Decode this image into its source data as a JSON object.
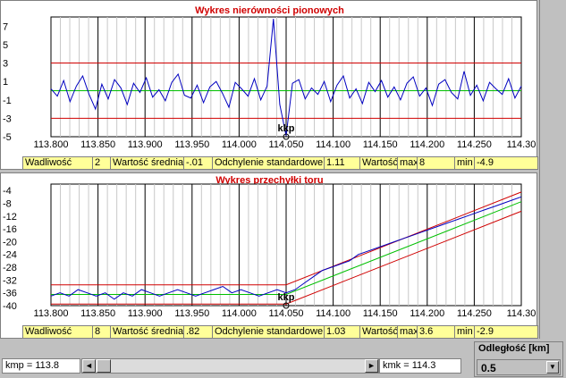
{
  "top_chart": {
    "title": "Wykres nierówności pionowych",
    "y_ticks": [
      "7",
      "5",
      "3",
      "1",
      "-1",
      "-3",
      "-5"
    ],
    "x_ticks": [
      "113.800",
      "113.850",
      "113.900",
      "113.950",
      "114.000",
      "114.050",
      "114.100",
      "114.150",
      "114.200",
      "114.250",
      "114.30"
    ],
    "marker_label": "kkp",
    "stats": {
      "wadliwosc_label": "Wadliwość",
      "wadliwosc_value": "2",
      "srednia_label": "Wartość średnia",
      "srednia_value": "-.01",
      "odchylenie_label": "Odchylenie standardowe",
      "odchylenie_value": "1.11",
      "wartosc_label": "Wartość",
      "max_label": "max",
      "max_value": "8",
      "min_label": "min",
      "min_value": "-4.9"
    }
  },
  "bottom_chart": {
    "title": "Wykres przechyłki toru",
    "y_ticks": [
      "-4",
      "-8",
      "-12",
      "-16",
      "-20",
      "-24",
      "-28",
      "-32",
      "-36",
      "-40"
    ],
    "x_ticks": [
      "113.800",
      "113.850",
      "113.900",
      "113.950",
      "114.000",
      "114.050",
      "114.100",
      "114.150",
      "114.200",
      "114.250",
      "114.30"
    ],
    "marker_label": "kkp",
    "stats": {
      "wadliwosc_label": "Wadliwość",
      "wadliwosc_value": "8",
      "srednia_label": "Wartość średnia",
      "srednia_value": ".82",
      "odchylenie_label": "Odchylenie standardowe",
      "odchylenie_value": "1.03",
      "wartosc_label": "Wartość",
      "max_label": "max",
      "max_value": "3.6",
      "min_label": "min",
      "min_value": "-2.9"
    }
  },
  "chart_data": [
    {
      "type": "line",
      "title": "Wykres nierówności pionowych",
      "xlim": [
        113.8,
        114.3
      ],
      "ylim": [
        -5,
        8
      ],
      "limits": [
        3,
        -3
      ],
      "series": [
        {
          "values": [
            0.2,
            -0.6,
            1.1,
            -1.2,
            0.5,
            1.6,
            -0.4,
            -2.0,
            0.7,
            -0.9,
            1.2,
            0.3,
            -1.5,
            0.8,
            -0.2,
            1.4,
            -0.7,
            0.1,
            -1.1,
            0.9,
            1.8,
            -0.5,
            -0.8,
            0.6,
            -1.3,
            0.4,
            1.0,
            -0.3,
            -1.8,
            0.9,
            0.2,
            -0.6,
            1.3,
            -1.0,
            0.5,
            7.8,
            -1.5,
            -4.9,
            0.8,
            1.2,
            -0.9,
            0.3,
            -0.4,
            1.0,
            -1.2,
            0.6,
            1.6,
            -0.8,
            0.2,
            -1.4,
            0.9,
            -0.1,
            1.1,
            -0.7,
            0.4,
            -1.0,
            0.8,
            1.5,
            -0.6,
            0.3,
            -1.6,
            0.7,
            1.2,
            -0.2,
            -0.9,
            2.1,
            -0.5,
            0.6,
            -1.1,
            0.9,
            0.2,
            -0.4,
            1.3,
            -0.8,
            0.5
          ]
        }
      ]
    },
    {
      "type": "line",
      "title": "Wykres przechyłki toru",
      "xlim": [
        113.8,
        114.3
      ],
      "ylim": [
        -40,
        -2
      ],
      "series": [
        {
          "values": [
            -37,
            -36,
            -37,
            -35,
            -36,
            -37,
            -36,
            -38,
            -36,
            -37,
            -35,
            -36,
            -37,
            -36,
            -35,
            -36,
            -37,
            -36,
            -35,
            -34,
            -36,
            -35,
            -36,
            -37,
            -36,
            -35,
            -36,
            -35,
            -33,
            -31,
            -29,
            -28,
            -27,
            -26,
            -24,
            -23,
            -22,
            -21,
            -20,
            -19,
            -18,
            -17,
            -16,
            -15,
            -14,
            -13,
            -12,
            -11,
            -10,
            -9,
            -8,
            -7,
            -6
          ]
        }
      ]
    }
  ],
  "controls": {
    "kmp_text": "kmp = 113.8",
    "kmk_text": "kmk = 114.3",
    "left_arrow": "◄",
    "right_arrow": "►",
    "distance_label": "Odległość [km]",
    "distance_value": "0.5",
    "distance_button": "▼"
  }
}
